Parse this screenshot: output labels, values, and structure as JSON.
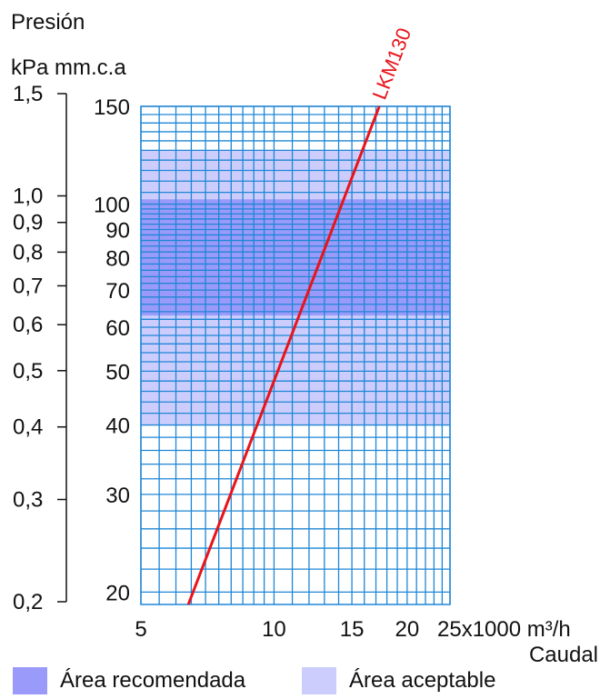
{
  "chart_data": {
    "type": "line",
    "title_line1": "Presión",
    "title_line2": "kPa mm.c.a",
    "x_scale": "log",
    "y_scale": "log",
    "xlim": [
      5,
      25
    ],
    "ylim_mmca": [
      19,
      150
    ],
    "x_ticks": [
      {
        "value": 5,
        "label": "5"
      },
      {
        "value": 10,
        "label": "10"
      },
      {
        "value": 15,
        "label": "15"
      },
      {
        "value": 20,
        "label": "20"
      },
      {
        "value": 25,
        "label": "25x1000 m³/h"
      }
    ],
    "xlabel": "Caudal",
    "y_ticks_mmca": [
      {
        "value": 150,
        "label": "150"
      },
      {
        "value": 100,
        "label": "100"
      },
      {
        "value": 90,
        "label": "90"
      },
      {
        "value": 80,
        "label": "80"
      },
      {
        "value": 70,
        "label": "70"
      },
      {
        "value": 60,
        "label": "60"
      },
      {
        "value": 50,
        "label": "50"
      },
      {
        "value": 40,
        "label": "40"
      },
      {
        "value": 30,
        "label": "30"
      },
      {
        "value": 20,
        "label": "20"
      }
    ],
    "y_ticks_kpa": [
      {
        "value": 1.5,
        "label": "1,5"
      },
      {
        "value": 1.0,
        "label": "1,0"
      },
      {
        "value": 0.9,
        "label": "0,9"
      },
      {
        "value": 0.8,
        "label": "0,8"
      },
      {
        "value": 0.7,
        "label": "0,7"
      },
      {
        "value": 0.6,
        "label": "0,6"
      },
      {
        "value": 0.5,
        "label": "0,5"
      },
      {
        "value": 0.4,
        "label": "0,4"
      },
      {
        "value": 0.3,
        "label": "0,3"
      },
      {
        "value": 0.2,
        "label": "0,2"
      }
    ],
    "kpa_axis_range": [
      0.2,
      1.5
    ],
    "grid": true,
    "series": [
      {
        "name": "LKM130",
        "color": "#e8141b",
        "x": [
          6.4,
          17.3
        ],
        "y": [
          19,
          150
        ]
      }
    ],
    "areas": [
      {
        "name": "Área aceptable",
        "y_range": [
          40,
          125
        ],
        "color": "#cccdfc"
      },
      {
        "name": "Área recomendada",
        "y_range": [
          63,
          102
        ],
        "color": "#9a9afa"
      }
    ],
    "legend_placement": "bottom",
    "grid_color": "#1e86d6"
  },
  "legend": {
    "recommended_label": "Área recomendada",
    "acceptable_label": "Área aceptable"
  }
}
